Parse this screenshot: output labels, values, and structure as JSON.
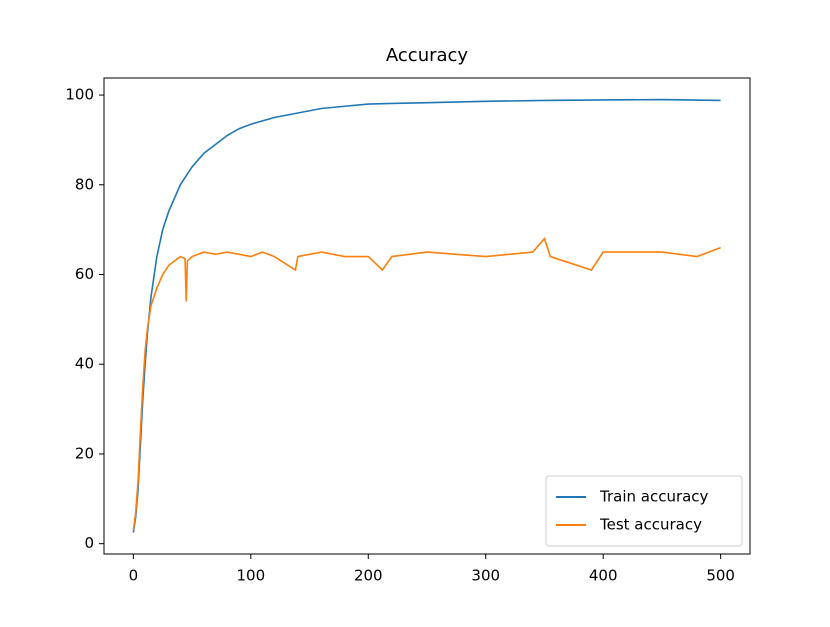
{
  "chart_data": {
    "type": "line",
    "title": "Accuracy",
    "xlim": [
      -25,
      525
    ],
    "xticks": [
      0,
      100,
      200,
      300,
      400,
      500
    ],
    "ylim": [
      -2.3,
      103.8
    ],
    "yticks": [
      0,
      20,
      40,
      60,
      80,
      100
    ],
    "grid": false,
    "legend": "lower right",
    "series": [
      {
        "name": "Train accuracy",
        "color": "#1f77b4",
        "x": [
          0,
          2,
          4,
          6,
          8,
          10,
          12,
          15,
          20,
          25,
          30,
          40,
          50,
          60,
          70,
          80,
          90,
          100,
          120,
          140,
          160,
          180,
          200,
          250,
          300,
          350,
          400,
          450,
          500
        ],
        "values": [
          2.5,
          6,
          12,
          22,
          32,
          40,
          47,
          55,
          64,
          70,
          74,
          80,
          84,
          87,
          89,
          91,
          92.5,
          93.5,
          95,
          96,
          97,
          97.5,
          98,
          98.3,
          98.6,
          98.8,
          98.9,
          99,
          98.8
        ]
      },
      {
        "name": "Test accuracy",
        "color": "#ff7f0e",
        "x": [
          0,
          2,
          4,
          6,
          8,
          10,
          12,
          15,
          20,
          25,
          30,
          35,
          40,
          44,
          45,
          46,
          50,
          60,
          70,
          80,
          100,
          110,
          120,
          138,
          140,
          160,
          180,
          200,
          212,
          220,
          250,
          300,
          340,
          350,
          355,
          390,
          400,
          450,
          480,
          500
        ],
        "values": [
          3,
          7,
          14,
          25,
          35,
          43,
          48,
          53,
          57,
          60,
          62,
          63,
          64,
          63.5,
          54,
          63,
          64,
          65,
          64.5,
          65,
          64,
          65,
          64,
          61,
          64,
          65,
          64,
          64,
          61,
          64,
          65,
          64,
          65,
          68,
          64,
          61,
          65,
          65,
          64,
          66
        ]
      }
    ]
  }
}
